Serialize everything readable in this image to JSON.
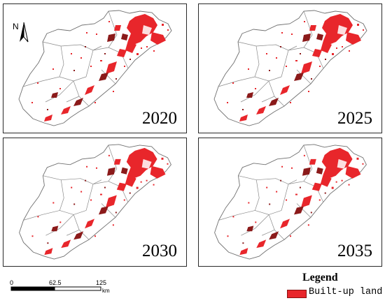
{
  "panels": [
    {
      "year": "2020"
    },
    {
      "year": "2025"
    },
    {
      "year": "2030"
    },
    {
      "year": "2035"
    }
  ],
  "north_label": "N",
  "scale": {
    "ticks": [
      "0",
      "62.5",
      "125"
    ],
    "unit": "km"
  },
  "legend": {
    "title": "Legend",
    "items": [
      {
        "label": "Built-up land",
        "color": "#e8262b"
      }
    ]
  },
  "colors": {
    "built_up": "#e8262b",
    "built_up_dark": "#8b1a1a",
    "boundary": "#707070"
  }
}
